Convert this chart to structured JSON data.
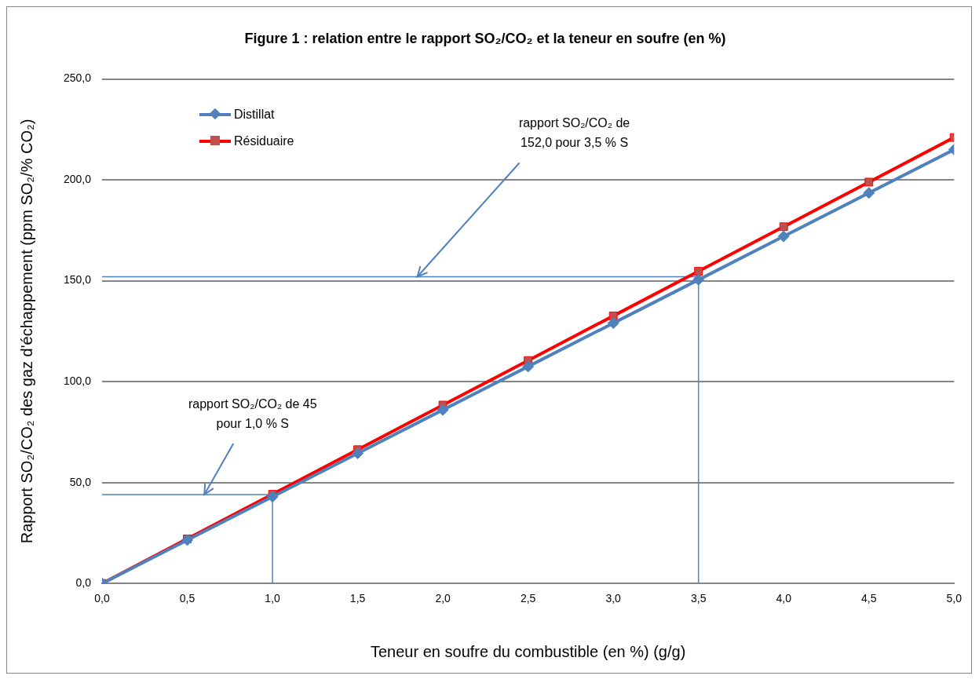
{
  "chart_data": {
    "type": "line",
    "title": "Figure 1 : relation entre le rapport SO₂/CO₂ et la teneur en soufre (en %)",
    "xlabel": "Teneur en soufre du combustible (en %) (g/g)",
    "ylabel": "Rapport SO₂/CO₂ des gaz d'échappement (ppm SO₂/% CO₂)",
    "x": [
      0,
      0.5,
      1,
      1.5,
      2,
      2.5,
      3,
      3.5,
      4,
      4.5,
      5
    ],
    "series": [
      {
        "name": "Distillat",
        "color": "#4f81bd",
        "marker": "diamond",
        "values": [
          0,
          21.5,
          43,
          64.5,
          86,
          107.5,
          129,
          150.5,
          172,
          193.5,
          215
        ]
      },
      {
        "name": "Résiduaire",
        "color": "#ff0000",
        "marker": "square",
        "values": [
          0,
          22.1,
          44.2,
          66.3,
          88.4,
          110.5,
          132.6,
          154.7,
          176.8,
          198.9,
          221
        ]
      },
      {
        "color": "#4f81bd",
        "marker": "none",
        "x": [
          0,
          3.5,
          3.5
        ],
        "values": [
          152,
          152,
          0
        ]
      },
      {
        "color": "#4f81bd",
        "marker": "none",
        "x": [
          0,
          1,
          1
        ],
        "values": [
          44,
          44,
          0
        ]
      }
    ],
    "xlim": [
      0,
      5
    ],
    "xticks": [
      {
        "value": 0,
        "label": "0,0"
      },
      {
        "value": 0.5,
        "label": "0,5"
      },
      {
        "value": 1,
        "label": "1,0"
      },
      {
        "value": 1.5,
        "label": "1,5"
      },
      {
        "value": 2,
        "label": "2,0"
      },
      {
        "value": 2.5,
        "label": "2,5"
      },
      {
        "value": 3,
        "label": "3,0"
      },
      {
        "value": 3.5,
        "label": "3,5"
      },
      {
        "value": 4,
        "label": "4,0"
      },
      {
        "value": 4.5,
        "label": "4,5"
      },
      {
        "value": 5,
        "label": "5,0"
      }
    ],
    "ylim": [
      0,
      250
    ],
    "yticks": [
      {
        "value": 0,
        "label": "0,0"
      },
      {
        "value": 50,
        "label": "50,0"
      },
      {
        "value": 100,
        "label": "100,0"
      },
      {
        "value": 150,
        "label": "150,0"
      },
      {
        "value": 200,
        "label": "200,0"
      },
      {
        "value": 250,
        "label": "250,0"
      }
    ],
    "annotations": [
      {
        "text": "rapport SO₂/CO₂ de 152,0 pour 3,5 % S",
        "x": 1.85,
        "y": 152
      },
      {
        "text": "rapport SO₂/CO₂ de 45 pour 1,0 % S",
        "x": 0.6,
        "y": 44
      }
    ],
    "grid": "y",
    "legend": "top left"
  }
}
